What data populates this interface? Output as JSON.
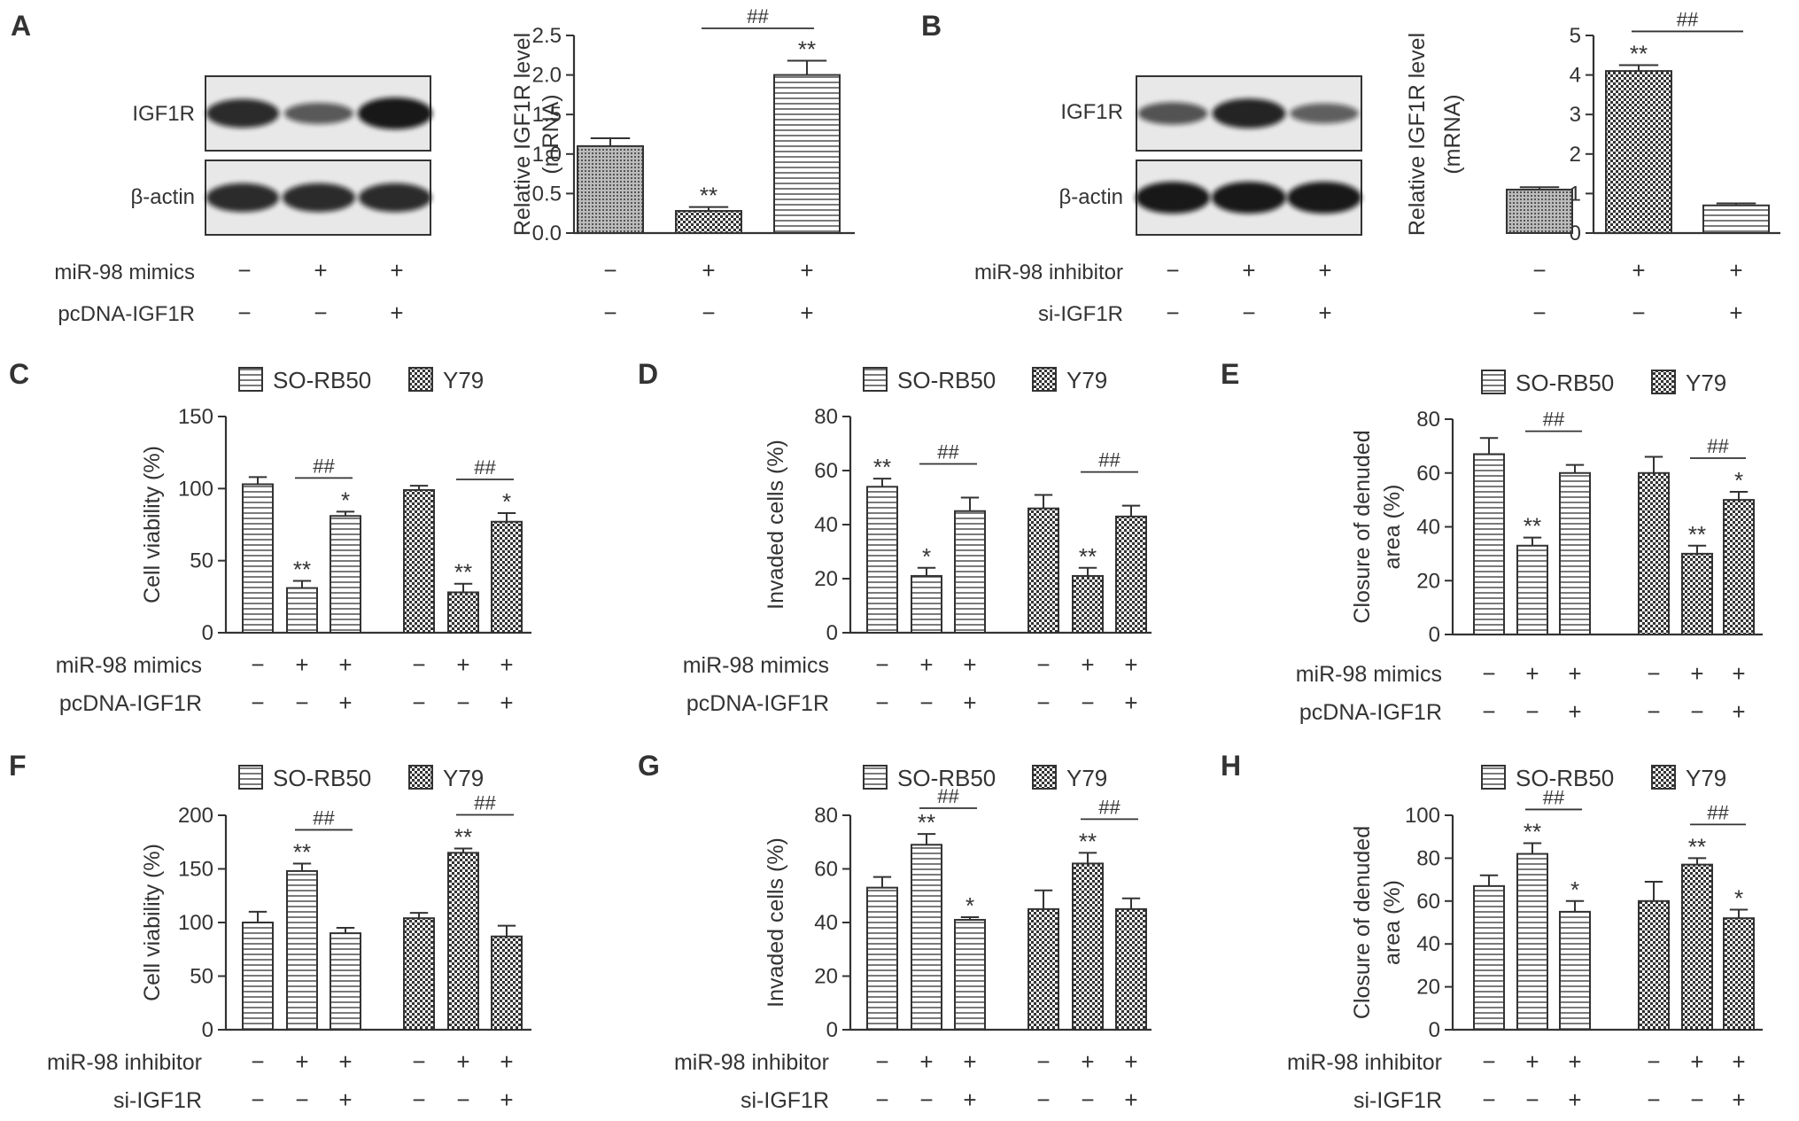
{
  "colors": {
    "ink": "#333333",
    "blot_bg": "#e8e8e8",
    "band": "#111111",
    "bar_fill": "#ffffff"
  },
  "legend": {
    "so_rb50": "SO-RB50",
    "y79": "Y79"
  },
  "blots": [
    {
      "panel": "A",
      "bands": [
        {
          "label": "IGF1R",
          "intensity": [
            0.85,
            0.5,
            1.0
          ]
        },
        {
          "label": "β-actin",
          "intensity": [
            0.85,
            0.85,
            0.85
          ]
        }
      ],
      "conditions": [
        {
          "label": "miR-98 mimics",
          "marks": [
            "−",
            "+",
            "+"
          ]
        },
        {
          "label": "pcDNA-IGF1R",
          "marks": [
            "−",
            "−",
            "+"
          ]
        }
      ]
    },
    {
      "panel": "B",
      "bands": [
        {
          "label": "IGF1R",
          "intensity": [
            0.55,
            0.9,
            0.45
          ]
        },
        {
          "label": "β-actin",
          "intensity": [
            1.0,
            1.0,
            1.0
          ]
        }
      ],
      "conditions": [
        {
          "label": "miR-98 inhibitor",
          "marks": [
            "−",
            "+",
            "+"
          ]
        },
        {
          "label": "si-IGF1R",
          "marks": [
            "−",
            "−",
            "+"
          ]
        }
      ]
    }
  ],
  "chart_data": [
    {
      "panel": "A",
      "type": "bar",
      "ylabel": [
        "Relative IGF1R level",
        "(mRNA)"
      ],
      "ylim": [
        0,
        2.5
      ],
      "yticks": [
        "0.0",
        "0.5",
        "1.0",
        "1.5",
        "2.0",
        "2.5"
      ],
      "values": [
        1.1,
        0.28,
        2.0
      ],
      "errors": [
        0.1,
        0.05,
        0.18
      ],
      "patterns": [
        "dots",
        "checker",
        "hlines"
      ],
      "sig": [
        "",
        "**",
        "**"
      ],
      "bracket": {
        "from": 1,
        "to": 2,
        "label": "##"
      },
      "conditions": [
        {
          "label": "",
          "marks": [
            "−",
            "+",
            "+"
          ]
        },
        {
          "label": "",
          "marks": [
            "−",
            "−",
            "+"
          ]
        }
      ]
    },
    {
      "panel": "B",
      "type": "bar",
      "ylabel": [
        "Relative IGF1R level",
        "(mRNA)"
      ],
      "ylim": [
        0,
        5
      ],
      "yticks": [
        "0",
        "1",
        "2",
        "3",
        "4",
        "5"
      ],
      "values": [
        1.1,
        4.1,
        0.7
      ],
      "errors": [
        0.06,
        0.15,
        0.05
      ],
      "patterns": [
        "dots",
        "checker",
        "hlines"
      ],
      "sig": [
        "",
        "**",
        ""
      ],
      "bracket": {
        "from": 1,
        "to": 2,
        "label": "##"
      },
      "conditions": [
        {
          "label": "",
          "marks": [
            "−",
            "+",
            "+"
          ]
        },
        {
          "label": "",
          "marks": [
            "−",
            "−",
            "+"
          ]
        }
      ]
    },
    {
      "panel": "C",
      "type": "bar",
      "ylabel": [
        "Cell viability (%)"
      ],
      "ylim": [
        0,
        150
      ],
      "yticks": [
        "0",
        "50",
        "100",
        "150"
      ],
      "series": [
        {
          "name": "SO-RB50",
          "values": [
            103,
            31,
            81
          ],
          "errors": [
            5,
            5,
            3
          ],
          "sig": [
            "",
            "**",
            "*"
          ]
        },
        {
          "name": "Y79",
          "values": [
            99,
            28,
            77
          ],
          "errors": [
            3,
            6,
            6
          ],
          "sig": [
            "",
            "**",
            "*"
          ]
        }
      ],
      "brackets": [
        {
          "series": 0,
          "label": "##"
        },
        {
          "series": 1,
          "label": "##"
        }
      ],
      "conditions": [
        {
          "label": "miR-98 mimics",
          "marks": [
            "−",
            "+",
            "+",
            "−",
            "+",
            "+"
          ]
        },
        {
          "label": "pcDNA-IGF1R",
          "marks": [
            "−",
            "−",
            "+",
            "−",
            "−",
            "+"
          ]
        }
      ]
    },
    {
      "panel": "D",
      "type": "bar",
      "ylabel": [
        "Invaded cells (%)"
      ],
      "ylim": [
        0,
        80
      ],
      "yticks": [
        "0",
        "20",
        "40",
        "60",
        "80"
      ],
      "series": [
        {
          "name": "SO-RB50",
          "values": [
            54,
            21,
            45
          ],
          "errors": [
            3,
            3,
            5
          ],
          "sig": [
            "**",
            "*",
            ""
          ]
        },
        {
          "name": "Y79",
          "values": [
            46,
            21,
            43
          ],
          "errors": [
            5,
            3,
            4
          ],
          "sig": [
            "",
            "**",
            ""
          ]
        }
      ],
      "brackets": [
        {
          "series": 0,
          "label": "##"
        },
        {
          "series": 1,
          "label": "##"
        }
      ],
      "conditions": [
        {
          "label": "miR-98 mimics",
          "marks": [
            "−",
            "+",
            "+",
            "−",
            "+",
            "+"
          ]
        },
        {
          "label": "pcDNA-IGF1R",
          "marks": [
            "−",
            "−",
            "+",
            "−",
            "−",
            "+"
          ]
        }
      ]
    },
    {
      "panel": "E",
      "type": "bar",
      "ylabel": [
        "Closure of denuded",
        "area (%)"
      ],
      "ylim": [
        0,
        80
      ],
      "yticks": [
        "0",
        "20",
        "40",
        "60",
        "80"
      ],
      "series": [
        {
          "name": "SO-RB50",
          "values": [
            67,
            33,
            60
          ],
          "errors": [
            6,
            3,
            3
          ],
          "sig": [
            "",
            "**",
            ""
          ]
        },
        {
          "name": "Y79",
          "values": [
            60,
            30,
            50
          ],
          "errors": [
            6,
            3,
            3
          ],
          "sig": [
            "",
            "**",
            "*"
          ]
        }
      ],
      "brackets": [
        {
          "series": 0,
          "label": "##"
        },
        {
          "series": 1,
          "label": "##"
        }
      ],
      "conditions": [
        {
          "label": "miR-98 mimics",
          "marks": [
            "−",
            "+",
            "+",
            "−",
            "+",
            "+"
          ]
        },
        {
          "label": "pcDNA-IGF1R",
          "marks": [
            "−",
            "−",
            "+",
            "−",
            "−",
            "+"
          ]
        }
      ]
    },
    {
      "panel": "F",
      "type": "bar",
      "ylabel": [
        "Cell viability (%)"
      ],
      "ylim": [
        0,
        200
      ],
      "yticks": [
        "0",
        "50",
        "100",
        "150",
        "200"
      ],
      "series": [
        {
          "name": "SO-RB50",
          "values": [
            100,
            148,
            90
          ],
          "errors": [
            10,
            7,
            5
          ],
          "sig": [
            "",
            "**",
            ""
          ]
        },
        {
          "name": "Y79",
          "values": [
            104,
            165,
            87
          ],
          "errors": [
            5,
            4,
            10
          ],
          "sig": [
            "",
            "**",
            ""
          ]
        }
      ],
      "brackets": [
        {
          "series": 0,
          "label": "##"
        },
        {
          "series": 1,
          "label": "##"
        }
      ],
      "conditions": [
        {
          "label": "miR-98 inhibitor",
          "marks": [
            "−",
            "+",
            "+",
            "−",
            "+",
            "+"
          ]
        },
        {
          "label": "si-IGF1R",
          "marks": [
            "−",
            "−",
            "+",
            "−",
            "−",
            "+"
          ]
        }
      ]
    },
    {
      "panel": "G",
      "type": "bar",
      "ylabel": [
        "Invaded cells (%)"
      ],
      "ylim": [
        0,
        80
      ],
      "yticks": [
        "0",
        "20",
        "40",
        "60",
        "80"
      ],
      "series": [
        {
          "name": "SO-RB50",
          "values": [
            53,
            69,
            41
          ],
          "errors": [
            4,
            4,
            1
          ],
          "sig": [
            "",
            "**",
            "*"
          ]
        },
        {
          "name": "Y79",
          "values": [
            45,
            62,
            45
          ],
          "errors": [
            7,
            4,
            4
          ],
          "sig": [
            "",
            "**",
            ""
          ]
        }
      ],
      "brackets": [
        {
          "series": 0,
          "label": "##"
        },
        {
          "series": 1,
          "label": "##"
        }
      ],
      "conditions": [
        {
          "label": "miR-98 inhibitor",
          "marks": [
            "−",
            "+",
            "+",
            "−",
            "+",
            "+"
          ]
        },
        {
          "label": "si-IGF1R",
          "marks": [
            "−",
            "−",
            "+",
            "−",
            "−",
            "+"
          ]
        }
      ]
    },
    {
      "panel": "H",
      "type": "bar",
      "ylabel": [
        "Closure of denuded",
        "area (%)"
      ],
      "ylim": [
        0,
        100
      ],
      "yticks": [
        "0",
        "20",
        "40",
        "60",
        "80",
        "100"
      ],
      "series": [
        {
          "name": "SO-RB50",
          "values": [
            67,
            82,
            55
          ],
          "errors": [
            5,
            5,
            5
          ],
          "sig": [
            "",
            "**",
            "*"
          ]
        },
        {
          "name": "Y79",
          "values": [
            60,
            77,
            52
          ],
          "errors": [
            9,
            3,
            4
          ],
          "sig": [
            "",
            "**",
            "*"
          ]
        }
      ],
      "brackets": [
        {
          "series": 0,
          "label": "##"
        },
        {
          "series": 1,
          "label": "##"
        }
      ],
      "conditions": [
        {
          "label": "miR-98 inhibitor",
          "marks": [
            "−",
            "+",
            "+",
            "−",
            "+",
            "+"
          ]
        },
        {
          "label": "si-IGF1R",
          "marks": [
            "−",
            "−",
            "+",
            "−",
            "−",
            "+"
          ]
        }
      ]
    }
  ]
}
